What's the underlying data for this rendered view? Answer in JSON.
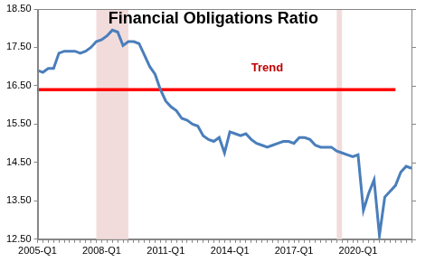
{
  "chart_data": {
    "type": "line",
    "title": "Financial Obligations Ratio",
    "categories": [
      "2005-Q1",
      null,
      null,
      null,
      null,
      null,
      null,
      null,
      null,
      null,
      null,
      null,
      "2008-Q1",
      null,
      null,
      null,
      null,
      null,
      null,
      null,
      null,
      null,
      null,
      null,
      "2011-Q1",
      null,
      null,
      null,
      null,
      null,
      null,
      null,
      null,
      null,
      null,
      null,
      "2014-Q1",
      null,
      null,
      null,
      null,
      null,
      null,
      null,
      null,
      null,
      null,
      null,
      "2017-Q1",
      null,
      null,
      null,
      null,
      null,
      null,
      null,
      null,
      null,
      null,
      null,
      "2020-Q1",
      null,
      null,
      null,
      null,
      null,
      null,
      null,
      null,
      null,
      null
    ],
    "series": [
      {
        "name": "Financial Obligations Ratio",
        "color": "#4a7ebb",
        "values": [
          16.9,
          16.85,
          16.95,
          16.95,
          17.35,
          17.4,
          17.4,
          17.4,
          17.35,
          17.4,
          17.5,
          17.65,
          17.7,
          17.8,
          17.95,
          17.9,
          17.55,
          17.65,
          17.65,
          17.6,
          17.3,
          17.0,
          16.8,
          16.4,
          16.1,
          15.95,
          15.85,
          15.65,
          15.6,
          15.5,
          15.45,
          15.2,
          15.1,
          15.05,
          15.15,
          14.75,
          15.3,
          15.25,
          15.2,
          15.25,
          15.1,
          15.0,
          14.95,
          14.9,
          14.95,
          15.0,
          15.05,
          15.05,
          15.0,
          15.15,
          15.15,
          15.1,
          14.95,
          14.9,
          14.9,
          14.9,
          14.8,
          14.75,
          14.7,
          14.65,
          14.7,
          13.25,
          13.7,
          14.05,
          12.6,
          13.6,
          13.75,
          13.9,
          14.25,
          14.4,
          14.35
        ]
      },
      {
        "name": "Trend",
        "color": "#ff0000",
        "values": [
          16.4,
          16.4,
          16.4,
          16.4,
          16.4,
          16.4,
          16.4,
          16.4,
          16.4,
          16.4,
          16.4,
          16.4,
          16.4,
          16.4,
          16.4,
          16.4,
          16.4,
          16.4,
          16.4,
          16.4,
          16.4,
          16.4,
          16.4,
          16.4,
          16.4,
          16.4,
          16.4,
          16.4,
          16.4,
          16.4,
          16.4,
          16.4,
          16.4,
          16.4,
          16.4,
          16.4,
          16.4,
          16.4,
          16.4,
          16.4,
          16.4,
          16.4,
          16.4,
          16.4,
          16.4,
          16.4,
          16.4,
          16.4,
          16.4,
          16.4,
          16.4,
          16.4,
          16.4,
          16.4,
          16.4,
          16.4,
          16.4,
          16.4,
          16.4,
          16.4,
          16.4,
          16.4,
          16.4,
          16.4,
          16.4,
          16.4,
          16.4,
          16.4,
          null,
          null,
          null
        ]
      }
    ],
    "shaded_spans": [
      {
        "from": 11,
        "to": 17
      },
      {
        "from": 56,
        "to": 57
      }
    ],
    "annotations": [
      {
        "text": "Trend",
        "x": 43,
        "y": 16.95,
        "color": "#c00000"
      }
    ],
    "ylim": [
      12.5,
      18.5
    ],
    "yticks": [
      {
        "value": 12.5,
        "label": "12.50"
      },
      {
        "value": 13.5,
        "label": "13.50"
      },
      {
        "value": 14.5,
        "label": "14.50"
      },
      {
        "value": 15.5,
        "label": "15.50"
      },
      {
        "value": 16.5,
        "label": "16.50"
      },
      {
        "value": 17.5,
        "label": "17.50"
      },
      {
        "value": 18.5,
        "label": "18.50"
      }
    ],
    "grid": false
  }
}
